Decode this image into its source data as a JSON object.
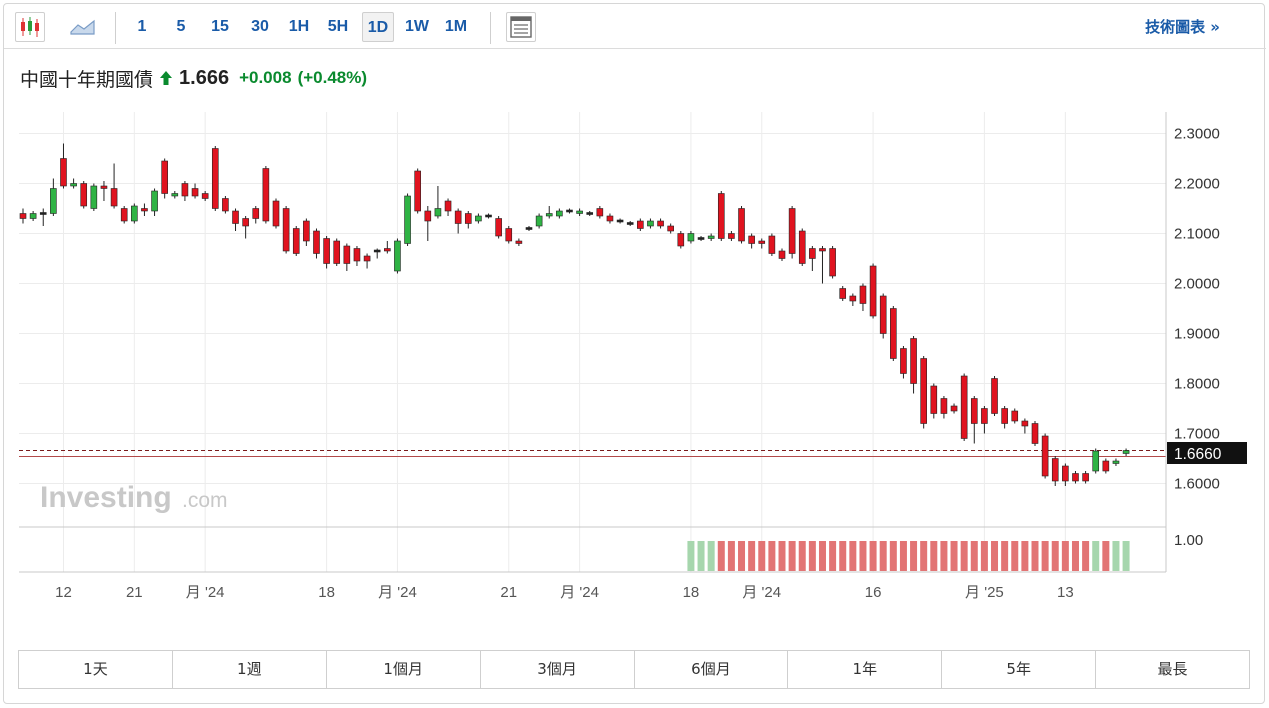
{
  "toolbar": {
    "intervals": [
      "1",
      "5",
      "15",
      "30",
      "1H",
      "5H",
      "1D",
      "1W",
      "1M"
    ],
    "active_interval": "1D",
    "tech_chart_label": "技術圖表 »"
  },
  "instrument": {
    "name": "中國十年期國債",
    "last": "1.666",
    "change": "+0.008",
    "change_pct": "(+0.48%)"
  },
  "colors": {
    "up": "#2fb344",
    "down": "#e0131f",
    "vol_up": "#a6d6ad",
    "vol_down": "#e27474",
    "accent": "#1a5ba8"
  },
  "watermark": {
    "brand": "Investing",
    "suffix": ".com"
  },
  "price_tag": "1.6660",
  "ranges": [
    "1天",
    "1週",
    "1個月",
    "3個月",
    "6個月",
    "1年",
    "5年",
    "最長"
  ],
  "chart_data": {
    "type": "candlestick",
    "ylim": [
      1.56,
      2.34
    ],
    "yticks": [
      "2.3000",
      "2.2000",
      "2.1000",
      "2.0000",
      "1.9000",
      "1.8000",
      "1.7000",
      "1.6000"
    ],
    "ytick_values": [
      2.3,
      2.2,
      2.1,
      2.0,
      1.9,
      1.8,
      1.7,
      1.6
    ],
    "xlabels": [
      {
        "label": "12",
        "i": 4
      },
      {
        "label": "21",
        "i": 11
      },
      {
        "label": "月 '24",
        "i": 18
      },
      {
        "label": "18",
        "i": 30
      },
      {
        "label": "月 '24",
        "i": 37
      },
      {
        "label": "21",
        "i": 48
      },
      {
        "label": "月 '24",
        "i": 55
      },
      {
        "label": "18",
        "i": 66
      },
      {
        "label": "月 '24",
        "i": 73
      },
      {
        "label": "16",
        "i": 84
      },
      {
        "label": "月 '25",
        "i": 95
      },
      {
        "label": "13",
        "i": 103
      }
    ],
    "volume_label": "1.00",
    "volume_start_index": 66,
    "candles": [
      [
        2.14,
        2.13,
        2.15,
        2.12
      ],
      [
        2.13,
        2.14,
        2.145,
        2.125
      ],
      [
        2.14,
        2.14,
        2.15,
        2.115
      ],
      [
        2.14,
        2.19,
        2.21,
        2.135
      ],
      [
        2.25,
        2.195,
        2.28,
        2.19
      ],
      [
        2.195,
        2.2,
        2.21,
        2.19
      ],
      [
        2.2,
        2.155,
        2.205,
        2.15
      ],
      [
        2.15,
        2.195,
        2.2,
        2.145
      ],
      [
        2.195,
        2.19,
        2.205,
        2.165
      ],
      [
        2.19,
        2.155,
        2.24,
        2.15
      ],
      [
        2.15,
        2.125,
        2.155,
        2.12
      ],
      [
        2.125,
        2.155,
        2.16,
        2.12
      ],
      [
        2.15,
        2.145,
        2.16,
        2.135
      ],
      [
        2.145,
        2.185,
        2.19,
        2.135
      ],
      [
        2.245,
        2.18,
        2.25,
        2.17
      ],
      [
        2.175,
        2.18,
        2.185,
        2.17
      ],
      [
        2.2,
        2.175,
        2.205,
        2.165
      ],
      [
        2.19,
        2.175,
        2.2,
        2.17
      ],
      [
        2.18,
        2.17,
        2.185,
        2.165
      ],
      [
        2.27,
        2.15,
        2.275,
        2.145
      ],
      [
        2.17,
        2.145,
        2.175,
        2.14
      ],
      [
        2.145,
        2.12,
        2.15,
        2.105
      ],
      [
        2.13,
        2.115,
        2.135,
        2.09
      ],
      [
        2.15,
        2.13,
        2.155,
        2.12
      ],
      [
        2.23,
        2.125,
        2.235,
        2.12
      ],
      [
        2.165,
        2.115,
        2.17,
        2.11
      ],
      [
        2.15,
        2.065,
        2.155,
        2.06
      ],
      [
        2.11,
        2.06,
        2.115,
        2.055
      ],
      [
        2.125,
        2.085,
        2.13,
        2.075
      ],
      [
        2.105,
        2.06,
        2.11,
        2.05
      ],
      [
        2.09,
        2.04,
        2.095,
        2.03
      ],
      [
        2.085,
        2.04,
        2.09,
        2.035
      ],
      [
        2.075,
        2.04,
        2.08,
        2.025
      ],
      [
        2.07,
        2.045,
        2.075,
        2.035
      ],
      [
        2.055,
        2.045,
        2.06,
        2.03
      ],
      [
        2.065,
        2.065,
        2.07,
        2.05
      ],
      [
        2.07,
        2.065,
        2.085,
        2.06
      ],
      [
        2.025,
        2.085,
        2.09,
        2.02
      ],
      [
        2.08,
        2.175,
        2.18,
        2.075
      ],
      [
        2.225,
        2.145,
        2.23,
        2.14
      ],
      [
        2.145,
        2.125,
        2.155,
        2.085
      ],
      [
        2.135,
        2.15,
        2.195,
        2.13
      ],
      [
        2.165,
        2.145,
        2.17,
        2.135
      ],
      [
        2.145,
        2.12,
        2.15,
        2.1
      ],
      [
        2.14,
        2.12,
        2.145,
        2.11
      ],
      [
        2.125,
        2.135,
        2.14,
        2.12
      ],
      [
        2.135,
        2.135,
        2.14,
        2.13
      ],
      [
        2.13,
        2.095,
        2.135,
        2.09
      ],
      [
        2.11,
        2.085,
        2.115,
        2.08
      ],
      [
        2.085,
        2.08,
        2.09,
        2.075
      ],
      [
        2.11,
        2.11,
        2.115,
        2.105
      ],
      [
        2.115,
        2.135,
        2.14,
        2.11
      ],
      [
        2.135,
        2.14,
        2.155,
        2.13
      ],
      [
        2.135,
        2.145,
        2.15,
        2.13
      ],
      [
        2.145,
        2.145,
        2.15,
        2.14
      ],
      [
        2.14,
        2.145,
        2.15,
        2.135
      ],
      [
        2.14,
        2.14,
        2.145,
        2.135
      ],
      [
        2.15,
        2.135,
        2.155,
        2.13
      ],
      [
        2.135,
        2.125,
        2.14,
        2.12
      ],
      [
        2.125,
        2.125,
        2.13,
        2.12
      ],
      [
        2.12,
        2.12,
        2.125,
        2.115
      ],
      [
        2.125,
        2.11,
        2.13,
        2.105
      ],
      [
        2.115,
        2.125,
        2.13,
        2.11
      ],
      [
        2.125,
        2.115,
        2.13,
        2.11
      ],
      [
        2.115,
        2.105,
        2.12,
        2.1
      ],
      [
        2.1,
        2.075,
        2.105,
        2.07
      ],
      [
        2.085,
        2.1,
        2.105,
        2.08
      ],
      [
        2.09,
        2.09,
        2.095,
        2.085
      ],
      [
        2.09,
        2.095,
        2.1,
        2.085
      ],
      [
        2.18,
        2.09,
        2.185,
        2.085
      ],
      [
        2.1,
        2.09,
        2.105,
        2.085
      ],
      [
        2.15,
        2.085,
        2.155,
        2.08
      ],
      [
        2.095,
        2.08,
        2.1,
        2.07
      ],
      [
        2.085,
        2.08,
        2.09,
        2.07
      ],
      [
        2.095,
        2.06,
        2.1,
        2.055
      ],
      [
        2.065,
        2.05,
        2.07,
        2.045
      ],
      [
        2.15,
        2.06,
        2.155,
        2.05
      ],
      [
        2.105,
        2.04,
        2.11,
        2.035
      ],
      [
        2.07,
        2.05,
        2.075,
        2.025
      ],
      [
        2.07,
        2.065,
        2.075,
        2.0
      ],
      [
        2.07,
        2.015,
        2.075,
        2.01
      ],
      [
        1.99,
        1.97,
        1.995,
        1.965
      ],
      [
        1.975,
        1.965,
        1.98,
        1.955
      ],
      [
        1.995,
        1.96,
        2.0,
        1.945
      ],
      [
        2.035,
        1.935,
        2.04,
        1.93
      ],
      [
        1.975,
        1.9,
        1.98,
        1.89
      ],
      [
        1.95,
        1.85,
        1.955,
        1.845
      ],
      [
        1.87,
        1.82,
        1.875,
        1.81
      ],
      [
        1.89,
        1.8,
        1.895,
        1.78
      ],
      [
        1.85,
        1.72,
        1.855,
        1.71
      ],
      [
        1.795,
        1.74,
        1.8,
        1.73
      ],
      [
        1.77,
        1.74,
        1.775,
        1.73
      ],
      [
        1.755,
        1.745,
        1.76,
        1.74
      ],
      [
        1.815,
        1.69,
        1.82,
        1.685
      ],
      [
        1.77,
        1.72,
        1.775,
        1.68
      ],
      [
        1.75,
        1.72,
        1.755,
        1.7
      ],
      [
        1.81,
        1.74,
        1.815,
        1.735
      ],
      [
        1.75,
        1.72,
        1.755,
        1.71
      ],
      [
        1.745,
        1.725,
        1.75,
        1.72
      ],
      [
        1.725,
        1.715,
        1.73,
        1.7
      ],
      [
        1.72,
        1.68,
        1.725,
        1.675
      ],
      [
        1.695,
        1.615,
        1.7,
        1.61
      ],
      [
        1.65,
        1.605,
        1.655,
        1.595
      ],
      [
        1.635,
        1.605,
        1.64,
        1.595
      ],
      [
        1.62,
        1.605,
        1.625,
        1.6
      ],
      [
        1.62,
        1.605,
        1.625,
        1.6
      ],
      [
        1.625,
        1.665,
        1.67,
        1.62
      ],
      [
        1.645,
        1.625,
        1.65,
        1.62
      ],
      [
        1.64,
        1.645,
        1.65,
        1.635
      ],
      [
        1.66,
        1.666,
        1.67,
        1.655
      ]
    ]
  }
}
